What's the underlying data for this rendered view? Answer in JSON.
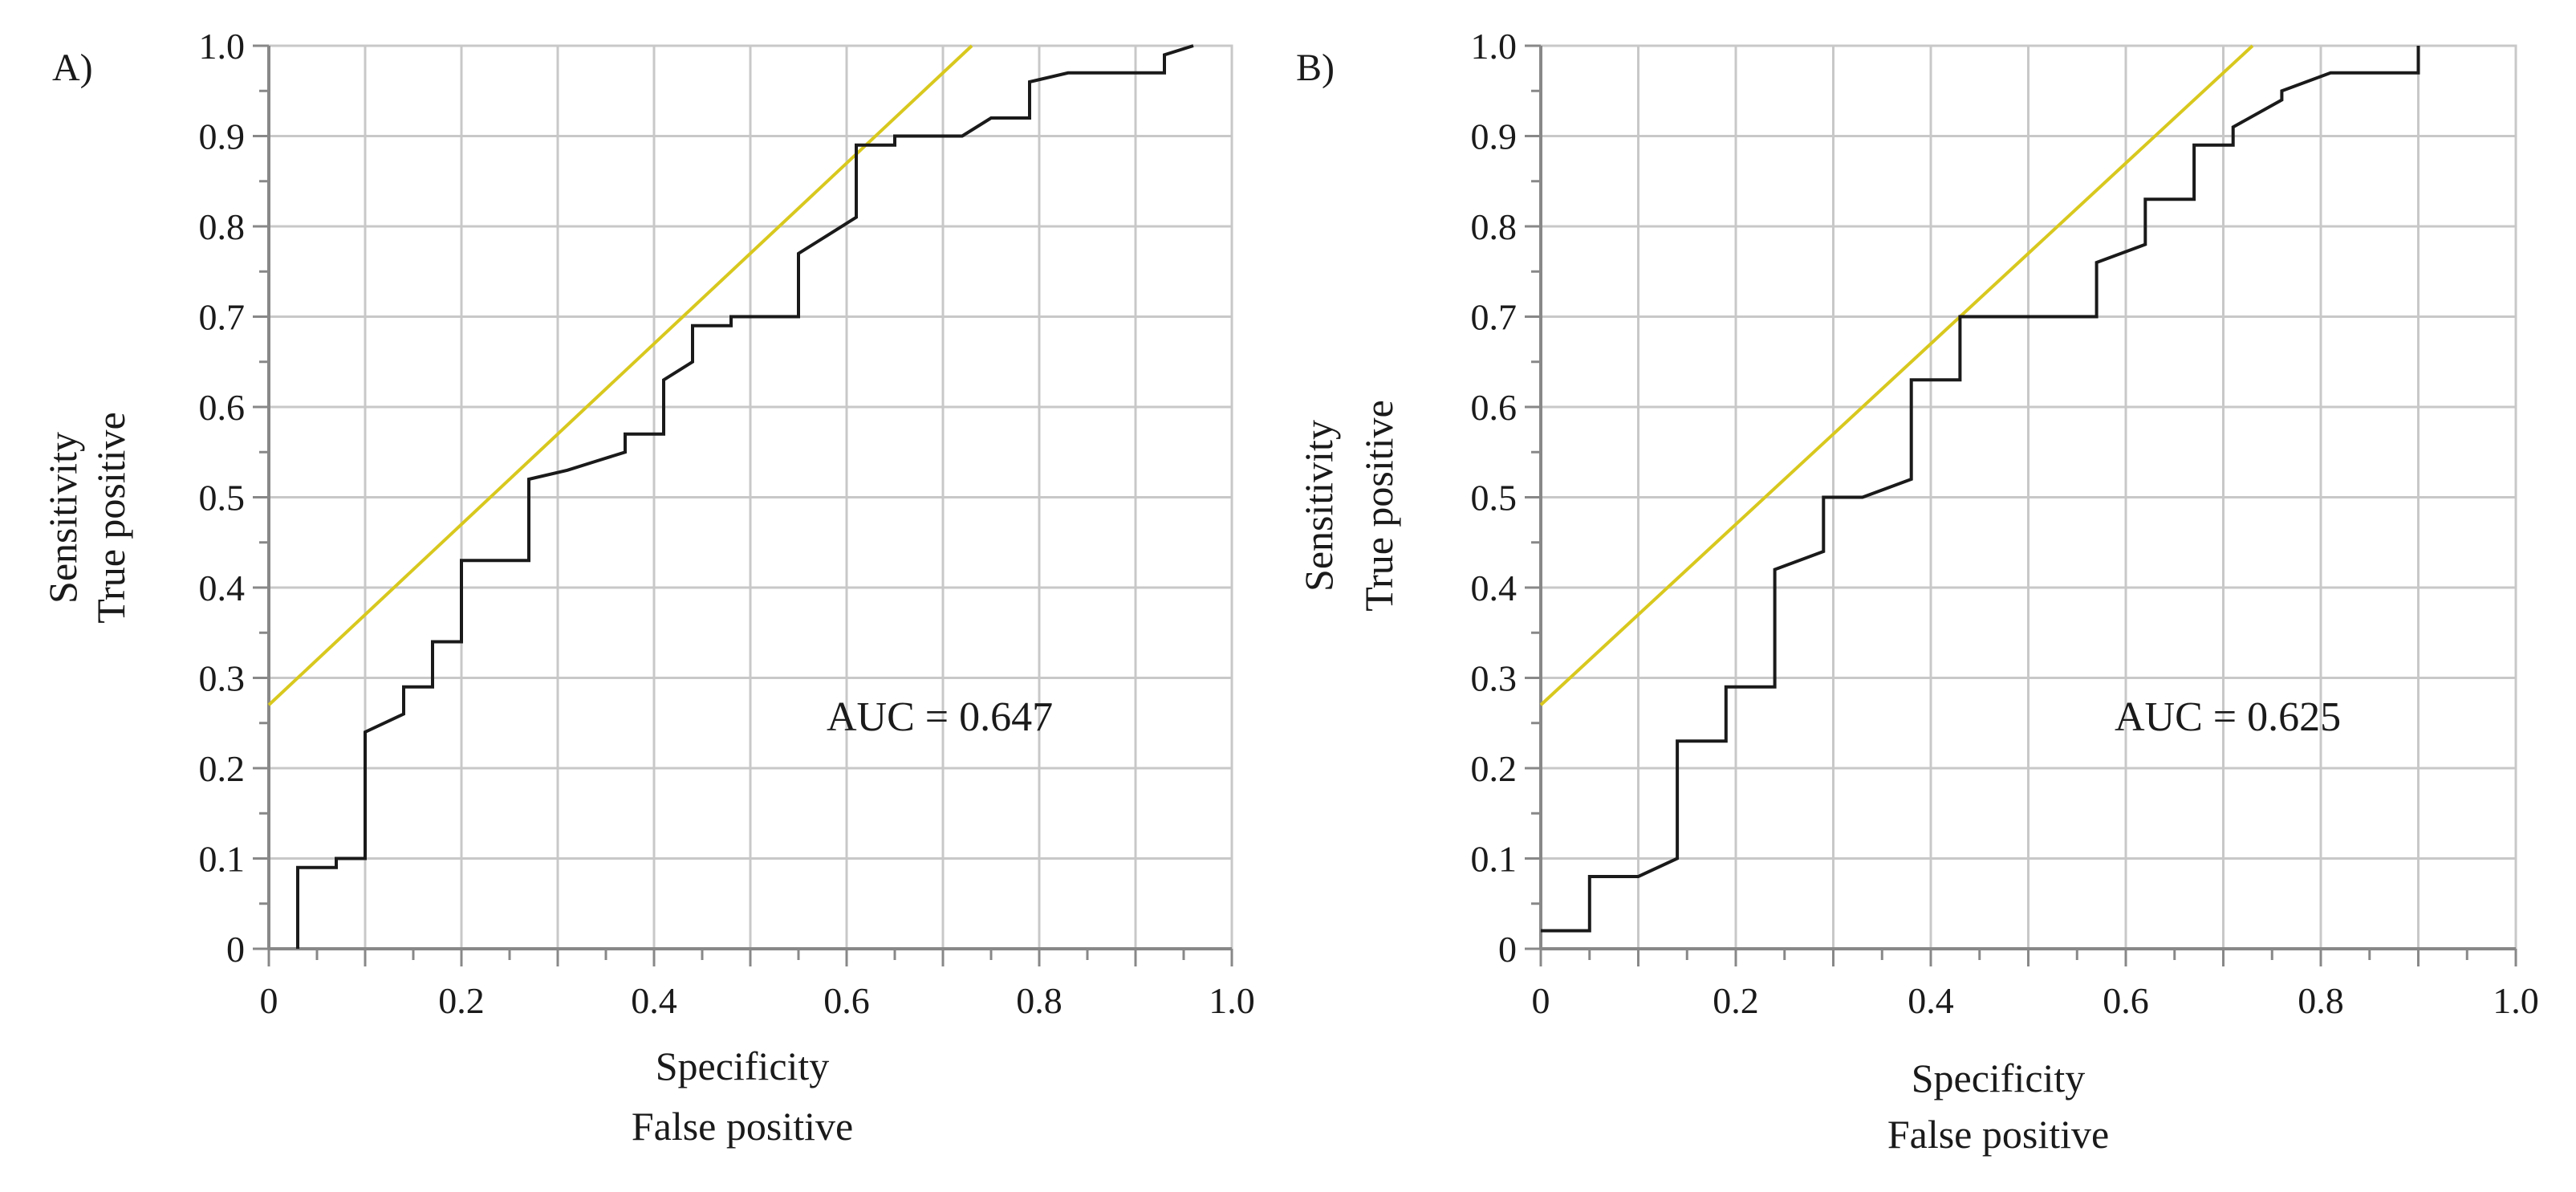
{
  "chart_data": [
    {
      "type": "line",
      "panel_label": "A)",
      "xlabel": [
        "Specificity",
        "False positive"
      ],
      "ylabel": [
        "Sensitivity",
        "True positive"
      ],
      "xlim": [
        0,
        1.0
      ],
      "ylim": [
        0,
        1.0
      ],
      "x_ticks": [
        "0",
        "0.2",
        "0.4",
        "0.6",
        "0.8",
        "1.0"
      ],
      "y_ticks": [
        "0",
        "0.1",
        "0.2",
        "0.3",
        "0.4",
        "0.5",
        "0.6",
        "0.7",
        "0.8",
        "0.9",
        "1.0"
      ],
      "grid": true,
      "annotation": "AUC = 0.647",
      "colors": {
        "roc": "#1a1a1a",
        "reference": "#d8c81e",
        "grid": "#c8c8c8"
      },
      "reference_line": {
        "x": [
          0,
          0.73
        ],
        "y": [
          0.27,
          1.0
        ]
      },
      "series": [
        {
          "x": [
            0.03,
            0.03,
            0.07,
            0.07,
            0.1,
            0.1,
            0.14,
            0.14,
            0.17,
            0.17,
            0.2,
            0.2,
            0.27,
            0.27,
            0.31,
            0.31,
            0.34,
            0.34,
            0.37,
            0.37,
            0.41,
            0.41,
            0.44,
            0.44,
            0.48,
            0.48,
            0.51,
            0.55,
            0.55,
            0.58,
            0.61,
            0.61,
            0.65,
            0.65,
            0.72,
            0.75,
            0.75,
            0.79,
            0.79,
            0.83,
            0.83,
            0.93,
            0.93,
            0.96
          ],
          "y": [
            0,
            0.09,
            0.09,
            0.1,
            0.1,
            0.24,
            0.26,
            0.29,
            0.29,
            0.34,
            0.34,
            0.43,
            0.43,
            0.52,
            0.53,
            0.53,
            0.54,
            0.54,
            0.55,
            0.57,
            0.57,
            0.63,
            0.65,
            0.69,
            0.69,
            0.7,
            0.7,
            0.7,
            0.77,
            0.79,
            0.81,
            0.89,
            0.89,
            0.9,
            0.9,
            0.92,
            0.92,
            0.92,
            0.96,
            0.97,
            0.97,
            0.97,
            0.99,
            1.0
          ]
        }
      ]
    },
    {
      "type": "line",
      "panel_label": "B)",
      "xlabel": [
        "Specificity",
        "False positive"
      ],
      "ylabel": [
        "Sensitivity",
        "True positive"
      ],
      "xlim": [
        0,
        1.0
      ],
      "ylim": [
        0,
        1.0
      ],
      "x_ticks": [
        "0",
        "0.2",
        "0.4",
        "0.6",
        "0.8",
        "1.0"
      ],
      "y_ticks": [
        "0",
        "0.1",
        "0.2",
        "0.3",
        "0.4",
        "0.5",
        "0.6",
        "0.7",
        "0.8",
        "0.9",
        "1.0"
      ],
      "grid": true,
      "annotation": "AUC = 0.625",
      "colors": {
        "roc": "#1a1a1a",
        "reference": "#d8c81e",
        "grid": "#c8c8c8"
      },
      "reference_line": {
        "x": [
          0,
          0.73
        ],
        "y": [
          0.27,
          1.0
        ]
      },
      "series": [
        {
          "x": [
            0,
            0.05,
            0.05,
            0.1,
            0.14,
            0.14,
            0.19,
            0.19,
            0.24,
            0.24,
            0.29,
            0.29,
            0.33,
            0.38,
            0.38,
            0.43,
            0.43,
            0.57,
            0.57,
            0.62,
            0.62,
            0.67,
            0.67,
            0.71,
            0.71,
            0.76,
            0.76,
            0.81,
            0.81,
            0.9,
            0.9
          ],
          "y": [
            0.02,
            0.02,
            0.08,
            0.08,
            0.1,
            0.23,
            0.23,
            0.29,
            0.29,
            0.42,
            0.44,
            0.5,
            0.5,
            0.52,
            0.63,
            0.63,
            0.7,
            0.7,
            0.76,
            0.78,
            0.83,
            0.83,
            0.89,
            0.89,
            0.91,
            0.94,
            0.95,
            0.97,
            0.97,
            0.97,
            1.0
          ]
        }
      ]
    }
  ]
}
